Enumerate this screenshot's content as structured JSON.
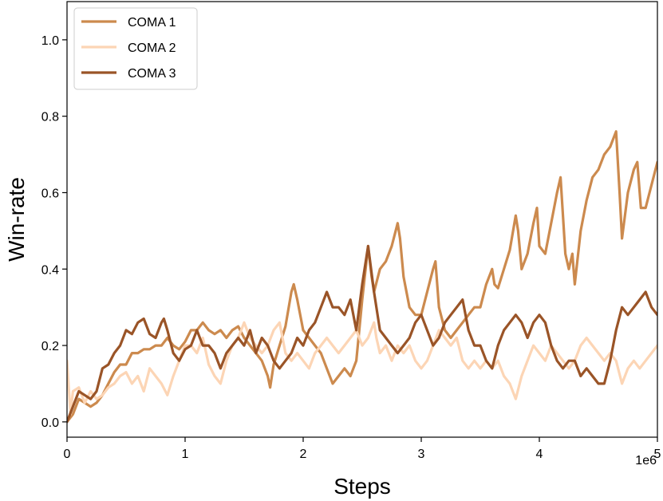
{
  "chart_data": {
    "type": "line",
    "xlabel": "Steps",
    "ylabel": "Win-rate",
    "x_offset_label": "1e6",
    "xlim": [
      0,
      5
    ],
    "ylim": [
      -0.04,
      1.1
    ],
    "xticks": [
      0,
      1,
      2,
      3,
      4,
      5
    ],
    "xtick_labels": [
      "0",
      "1",
      "2",
      "3",
      "4",
      "5"
    ],
    "yticks": [
      0.0,
      0.2,
      0.4,
      0.6,
      0.8,
      1.0
    ],
    "ytick_labels": [
      "0.0",
      "0.2",
      "0.4",
      "0.6",
      "0.8",
      "1.0"
    ],
    "grid": false,
    "legend_position": "top-left",
    "series": [
      {
        "name": "COMA 1",
        "color": "#cc8a4e",
        "points": [
          [
            0.0,
            0.0
          ],
          [
            0.05,
            0.02
          ],
          [
            0.1,
            0.06
          ],
          [
            0.15,
            0.05
          ],
          [
            0.2,
            0.04
          ],
          [
            0.25,
            0.05
          ],
          [
            0.3,
            0.07
          ],
          [
            0.35,
            0.1
          ],
          [
            0.4,
            0.13
          ],
          [
            0.45,
            0.15
          ],
          [
            0.5,
            0.15
          ],
          [
            0.55,
            0.18
          ],
          [
            0.6,
            0.18
          ],
          [
            0.65,
            0.19
          ],
          [
            0.7,
            0.19
          ],
          [
            0.75,
            0.2
          ],
          [
            0.8,
            0.2
          ],
          [
            0.85,
            0.22
          ],
          [
            0.9,
            0.2
          ],
          [
            0.95,
            0.19
          ],
          [
            1.0,
            0.21
          ],
          [
            1.05,
            0.24
          ],
          [
            1.1,
            0.24
          ],
          [
            1.15,
            0.26
          ],
          [
            1.2,
            0.24
          ],
          [
            1.25,
            0.23
          ],
          [
            1.3,
            0.24
          ],
          [
            1.35,
            0.22
          ],
          [
            1.4,
            0.24
          ],
          [
            1.45,
            0.25
          ],
          [
            1.5,
            0.22
          ],
          [
            1.55,
            0.2
          ],
          [
            1.6,
            0.18
          ],
          [
            1.65,
            0.16
          ],
          [
            1.7,
            0.12
          ],
          [
            1.72,
            0.09
          ],
          [
            1.75,
            0.15
          ],
          [
            1.8,
            0.2
          ],
          [
            1.85,
            0.25
          ],
          [
            1.9,
            0.34
          ],
          [
            1.92,
            0.36
          ],
          [
            1.95,
            0.32
          ],
          [
            2.0,
            0.24
          ],
          [
            2.05,
            0.22
          ],
          [
            2.1,
            0.2
          ],
          [
            2.15,
            0.18
          ],
          [
            2.2,
            0.14
          ],
          [
            2.25,
            0.1
          ],
          [
            2.3,
            0.12
          ],
          [
            2.35,
            0.14
          ],
          [
            2.4,
            0.12
          ],
          [
            2.45,
            0.16
          ],
          [
            2.5,
            0.32
          ],
          [
            2.55,
            0.46
          ],
          [
            2.58,
            0.38
          ],
          [
            2.6,
            0.34
          ],
          [
            2.65,
            0.4
          ],
          [
            2.7,
            0.42
          ],
          [
            2.75,
            0.46
          ],
          [
            2.8,
            0.52
          ],
          [
            2.82,
            0.48
          ],
          [
            2.85,
            0.38
          ],
          [
            2.9,
            0.3
          ],
          [
            2.95,
            0.28
          ],
          [
            3.0,
            0.28
          ],
          [
            3.05,
            0.34
          ],
          [
            3.1,
            0.4
          ],
          [
            3.12,
            0.42
          ],
          [
            3.15,
            0.3
          ],
          [
            3.2,
            0.24
          ],
          [
            3.25,
            0.22
          ],
          [
            3.3,
            0.24
          ],
          [
            3.35,
            0.26
          ],
          [
            3.4,
            0.28
          ],
          [
            3.45,
            0.3
          ],
          [
            3.5,
            0.3
          ],
          [
            3.55,
            0.36
          ],
          [
            3.6,
            0.4
          ],
          [
            3.62,
            0.36
          ],
          [
            3.65,
            0.35
          ],
          [
            3.7,
            0.4
          ],
          [
            3.75,
            0.45
          ],
          [
            3.8,
            0.54
          ],
          [
            3.82,
            0.5
          ],
          [
            3.85,
            0.4
          ],
          [
            3.9,
            0.44
          ],
          [
            3.95,
            0.52
          ],
          [
            3.98,
            0.56
          ],
          [
            4.0,
            0.46
          ],
          [
            4.05,
            0.44
          ],
          [
            4.1,
            0.52
          ],
          [
            4.15,
            0.6
          ],
          [
            4.18,
            0.64
          ],
          [
            4.22,
            0.44
          ],
          [
            4.25,
            0.4
          ],
          [
            4.28,
            0.44
          ],
          [
            4.3,
            0.36
          ],
          [
            4.35,
            0.5
          ],
          [
            4.4,
            0.58
          ],
          [
            4.45,
            0.64
          ],
          [
            4.5,
            0.66
          ],
          [
            4.55,
            0.7
          ],
          [
            4.6,
            0.72
          ],
          [
            4.65,
            0.76
          ],
          [
            4.68,
            0.6
          ],
          [
            4.7,
            0.48
          ],
          [
            4.75,
            0.6
          ],
          [
            4.8,
            0.66
          ],
          [
            4.83,
            0.68
          ],
          [
            4.86,
            0.56
          ],
          [
            4.9,
            0.56
          ],
          [
            4.95,
            0.62
          ],
          [
            5.0,
            0.68
          ]
        ]
      },
      {
        "name": "COMA 2",
        "color": "#fcd5b5",
        "points": [
          [
            0.0,
            0.16
          ],
          [
            0.03,
            0.02
          ],
          [
            0.05,
            0.08
          ],
          [
            0.1,
            0.09
          ],
          [
            0.15,
            0.05
          ],
          [
            0.2,
            0.08
          ],
          [
            0.25,
            0.06
          ],
          [
            0.3,
            0.07
          ],
          [
            0.35,
            0.09
          ],
          [
            0.4,
            0.1
          ],
          [
            0.45,
            0.12
          ],
          [
            0.5,
            0.13
          ],
          [
            0.55,
            0.1
          ],
          [
            0.6,
            0.12
          ],
          [
            0.65,
            0.08
          ],
          [
            0.7,
            0.14
          ],
          [
            0.75,
            0.12
          ],
          [
            0.8,
            0.1
          ],
          [
            0.85,
            0.07
          ],
          [
            0.9,
            0.12
          ],
          [
            0.95,
            0.16
          ],
          [
            1.0,
            0.2
          ],
          [
            1.05,
            0.2
          ],
          [
            1.1,
            0.18
          ],
          [
            1.15,
            0.22
          ],
          [
            1.2,
            0.15
          ],
          [
            1.25,
            0.12
          ],
          [
            1.3,
            0.1
          ],
          [
            1.35,
            0.16
          ],
          [
            1.4,
            0.2
          ],
          [
            1.45,
            0.22
          ],
          [
            1.5,
            0.26
          ],
          [
            1.55,
            0.22
          ],
          [
            1.6,
            0.2
          ],
          [
            1.65,
            0.18
          ],
          [
            1.7,
            0.2
          ],
          [
            1.75,
            0.24
          ],
          [
            1.8,
            0.26
          ],
          [
            1.85,
            0.18
          ],
          [
            1.9,
            0.16
          ],
          [
            1.95,
            0.18
          ],
          [
            2.0,
            0.16
          ],
          [
            2.05,
            0.14
          ],
          [
            2.1,
            0.18
          ],
          [
            2.15,
            0.2
          ],
          [
            2.2,
            0.22
          ],
          [
            2.25,
            0.2
          ],
          [
            2.3,
            0.18
          ],
          [
            2.35,
            0.2
          ],
          [
            2.4,
            0.22
          ],
          [
            2.45,
            0.24
          ],
          [
            2.5,
            0.2
          ],
          [
            2.55,
            0.22
          ],
          [
            2.6,
            0.26
          ],
          [
            2.62,
            0.22
          ],
          [
            2.65,
            0.18
          ],
          [
            2.7,
            0.2
          ],
          [
            2.75,
            0.16
          ],
          [
            2.8,
            0.2
          ],
          [
            2.85,
            0.18
          ],
          [
            2.9,
            0.2
          ],
          [
            2.95,
            0.16
          ],
          [
            3.0,
            0.14
          ],
          [
            3.05,
            0.16
          ],
          [
            3.1,
            0.2
          ],
          [
            3.15,
            0.24
          ],
          [
            3.2,
            0.22
          ],
          [
            3.25,
            0.2
          ],
          [
            3.3,
            0.22
          ],
          [
            3.35,
            0.16
          ],
          [
            3.4,
            0.14
          ],
          [
            3.45,
            0.16
          ],
          [
            3.5,
            0.14
          ],
          [
            3.55,
            0.16
          ],
          [
            3.6,
            0.14
          ],
          [
            3.65,
            0.16
          ],
          [
            3.7,
            0.12
          ],
          [
            3.75,
            0.1
          ],
          [
            3.8,
            0.06
          ],
          [
            3.85,
            0.12
          ],
          [
            3.9,
            0.16
          ],
          [
            3.95,
            0.2
          ],
          [
            4.0,
            0.18
          ],
          [
            4.05,
            0.16
          ],
          [
            4.1,
            0.2
          ],
          [
            4.15,
            0.18
          ],
          [
            4.2,
            0.16
          ],
          [
            4.25,
            0.14
          ],
          [
            4.3,
            0.16
          ],
          [
            4.35,
            0.2
          ],
          [
            4.4,
            0.22
          ],
          [
            4.45,
            0.2
          ],
          [
            4.5,
            0.18
          ],
          [
            4.55,
            0.16
          ],
          [
            4.6,
            0.18
          ],
          [
            4.65,
            0.16
          ],
          [
            4.7,
            0.1
          ],
          [
            4.75,
            0.14
          ],
          [
            4.8,
            0.16
          ],
          [
            4.85,
            0.14
          ],
          [
            4.9,
            0.16
          ],
          [
            4.95,
            0.18
          ],
          [
            5.0,
            0.2
          ]
        ]
      },
      {
        "name": "COMA 3",
        "color": "#9a5427",
        "points": [
          [
            0.0,
            0.0
          ],
          [
            0.05,
            0.04
          ],
          [
            0.1,
            0.08
          ],
          [
            0.15,
            0.07
          ],
          [
            0.2,
            0.06
          ],
          [
            0.25,
            0.08
          ],
          [
            0.3,
            0.14
          ],
          [
            0.35,
            0.15
          ],
          [
            0.4,
            0.18
          ],
          [
            0.45,
            0.2
          ],
          [
            0.5,
            0.24
          ],
          [
            0.55,
            0.23
          ],
          [
            0.6,
            0.26
          ],
          [
            0.65,
            0.27
          ],
          [
            0.7,
            0.23
          ],
          [
            0.75,
            0.22
          ],
          [
            0.8,
            0.26
          ],
          [
            0.82,
            0.27
          ],
          [
            0.85,
            0.24
          ],
          [
            0.9,
            0.18
          ],
          [
            0.95,
            0.16
          ],
          [
            1.0,
            0.19
          ],
          [
            1.05,
            0.2
          ],
          [
            1.1,
            0.24
          ],
          [
            1.15,
            0.2
          ],
          [
            1.2,
            0.2
          ],
          [
            1.25,
            0.18
          ],
          [
            1.3,
            0.14
          ],
          [
            1.35,
            0.18
          ],
          [
            1.4,
            0.2
          ],
          [
            1.45,
            0.22
          ],
          [
            1.5,
            0.2
          ],
          [
            1.55,
            0.24
          ],
          [
            1.6,
            0.18
          ],
          [
            1.65,
            0.22
          ],
          [
            1.7,
            0.2
          ],
          [
            1.75,
            0.16
          ],
          [
            1.8,
            0.14
          ],
          [
            1.85,
            0.16
          ],
          [
            1.9,
            0.18
          ],
          [
            1.95,
            0.22
          ],
          [
            2.0,
            0.2
          ],
          [
            2.05,
            0.24
          ],
          [
            2.1,
            0.26
          ],
          [
            2.15,
            0.3
          ],
          [
            2.2,
            0.34
          ],
          [
            2.25,
            0.3
          ],
          [
            2.3,
            0.3
          ],
          [
            2.35,
            0.28
          ],
          [
            2.4,
            0.32
          ],
          [
            2.45,
            0.24
          ],
          [
            2.5,
            0.36
          ],
          [
            2.55,
            0.46
          ],
          [
            2.6,
            0.34
          ],
          [
            2.65,
            0.24
          ],
          [
            2.7,
            0.22
          ],
          [
            2.75,
            0.2
          ],
          [
            2.8,
            0.18
          ],
          [
            2.85,
            0.2
          ],
          [
            2.9,
            0.22
          ],
          [
            2.95,
            0.26
          ],
          [
            3.0,
            0.28
          ],
          [
            3.05,
            0.24
          ],
          [
            3.1,
            0.2
          ],
          [
            3.15,
            0.22
          ],
          [
            3.2,
            0.26
          ],
          [
            3.25,
            0.28
          ],
          [
            3.3,
            0.3
          ],
          [
            3.35,
            0.32
          ],
          [
            3.4,
            0.24
          ],
          [
            3.45,
            0.2
          ],
          [
            3.5,
            0.2
          ],
          [
            3.55,
            0.16
          ],
          [
            3.6,
            0.14
          ],
          [
            3.65,
            0.2
          ],
          [
            3.7,
            0.24
          ],
          [
            3.75,
            0.26
          ],
          [
            3.8,
            0.28
          ],
          [
            3.85,
            0.26
          ],
          [
            3.9,
            0.22
          ],
          [
            3.95,
            0.26
          ],
          [
            4.0,
            0.28
          ],
          [
            4.05,
            0.26
          ],
          [
            4.1,
            0.2
          ],
          [
            4.15,
            0.16
          ],
          [
            4.2,
            0.14
          ],
          [
            4.25,
            0.16
          ],
          [
            4.3,
            0.16
          ],
          [
            4.35,
            0.12
          ],
          [
            4.4,
            0.14
          ],
          [
            4.45,
            0.12
          ],
          [
            4.5,
            0.1
          ],
          [
            4.55,
            0.1
          ],
          [
            4.6,
            0.16
          ],
          [
            4.65,
            0.24
          ],
          [
            4.7,
            0.3
          ],
          [
            4.75,
            0.28
          ],
          [
            4.8,
            0.3
          ],
          [
            4.85,
            0.32
          ],
          [
            4.9,
            0.34
          ],
          [
            4.95,
            0.3
          ],
          [
            5.0,
            0.28
          ]
        ]
      }
    ]
  }
}
